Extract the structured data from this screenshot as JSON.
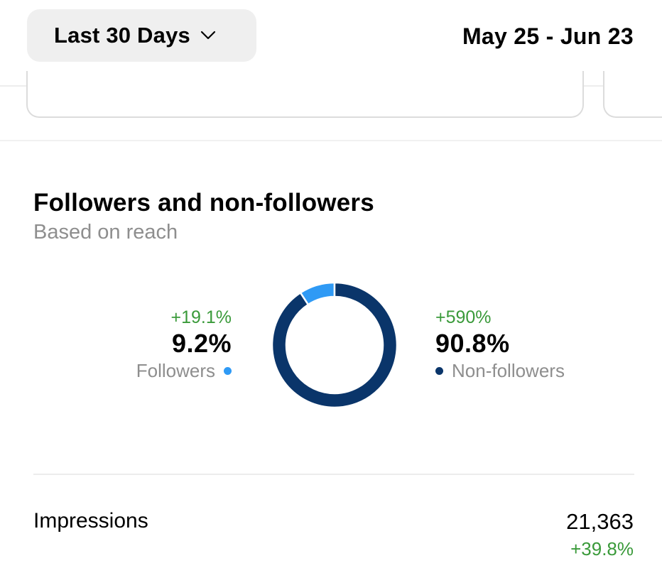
{
  "header": {
    "range_label": "Last 30 Days",
    "date_range": "May 25 - Jun 23"
  },
  "section": {
    "title": "Followers and non-followers",
    "subtitle": "Based on reach"
  },
  "chart_data": {
    "type": "pie",
    "slices": [
      {
        "name": "Followers",
        "value": 9.2,
        "label": "9.2%",
        "change": "+19.1%",
        "color": "#2f9af5"
      },
      {
        "name": "Non-followers",
        "value": 90.8,
        "label": "90.8%",
        "change": "+590%",
        "color": "#0a356a"
      }
    ]
  },
  "metric": {
    "label": "Impressions",
    "value": "21,363",
    "change": "+39.8%"
  },
  "colors": {
    "positive": "#3a9a3a",
    "followers": "#2f9af5",
    "non_followers": "#0a356a"
  }
}
